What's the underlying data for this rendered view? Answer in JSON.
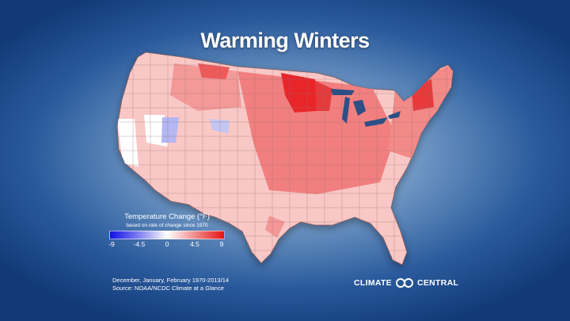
{
  "title": "Warming Winters",
  "legend": {
    "title": "Temperature Change (°F)",
    "subtitle": "based on rate of change since 1970",
    "ticks": [
      "-9",
      "-4.5",
      "0",
      "4.5",
      "9"
    ],
    "scale_min": -9,
    "scale_max": 9,
    "color_low": "#1010e6",
    "color_mid": "#ffffff",
    "color_high": "#e41212"
  },
  "source": {
    "line1": "December, January, February 1970-2013/14",
    "line2": "Source: NOAA/NCDC Climate at a Glance"
  },
  "logo": {
    "left": "CLIMATE",
    "right": "CENTRAL"
  },
  "colors": {
    "background": "#2a5a9c",
    "strong_warming": "#e8262a",
    "moderate_warming": "#f17f7f",
    "light_warming": "#f9c8c6",
    "no_change": "#ffffff",
    "cooling": "#b3b7f2"
  },
  "map": {
    "region": "Contiguous United States",
    "description": "Climate divisions shaded by winter temperature change"
  }
}
